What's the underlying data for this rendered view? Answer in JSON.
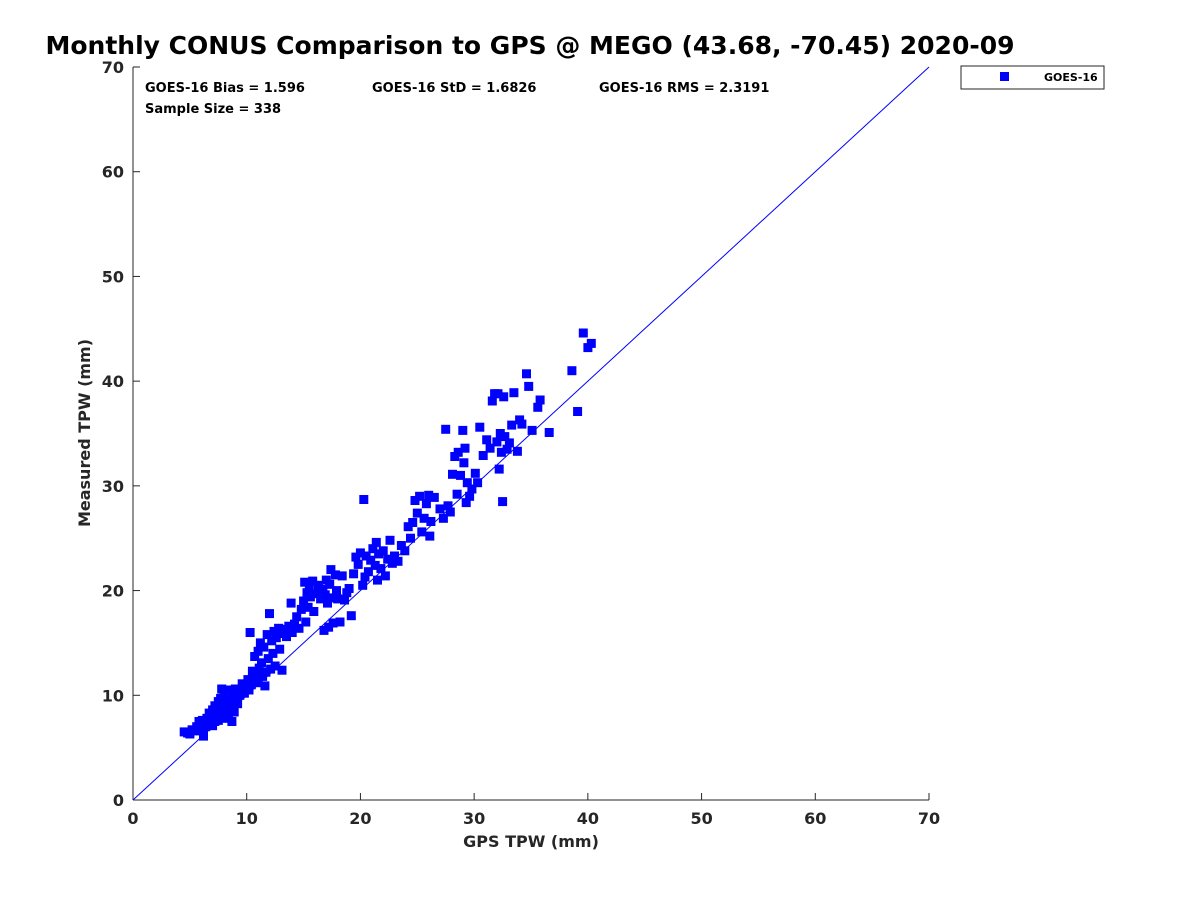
{
  "chart_data": {
    "type": "scatter",
    "title": "Monthly CONUS Comparison to GPS @ MEGO (43.68, -70.45) 2020-09",
    "xlabel": "GPS TPW (mm)",
    "ylabel": "Measured TPW (mm)",
    "xlim": [
      0,
      70
    ],
    "ylim": [
      0,
      70
    ],
    "xticks": [
      0,
      10,
      20,
      30,
      40,
      50,
      60,
      70
    ],
    "yticks": [
      0,
      10,
      20,
      30,
      40,
      50,
      60,
      70
    ],
    "grid": false,
    "legend_position": "outside-top-right",
    "reference_line": {
      "x": [
        0,
        70
      ],
      "y": [
        0,
        70
      ],
      "color": "#0000ff"
    },
    "stats": {
      "bias": "GOES-16 Bias = 1.596",
      "std": "GOES-16 StD = 1.6826",
      "rms": "GOES-16 RMS = 2.3191",
      "sample_size": "Sample Size = 338"
    },
    "series": [
      {
        "name": "GOES-16",
        "color": "#0000ff",
        "marker": "square",
        "points": [
          [
            4.5,
            6.5
          ],
          [
            4.8,
            6.4
          ],
          [
            5.0,
            6.3
          ],
          [
            5.2,
            6.7
          ],
          [
            5.5,
            6.6
          ],
          [
            5.6,
            7.0
          ],
          [
            5.8,
            7.5
          ],
          [
            5.9,
            6.8
          ],
          [
            6.0,
            7.2
          ],
          [
            6.1,
            7.6
          ],
          [
            6.2,
            6.9
          ],
          [
            6.2,
            6.1
          ],
          [
            6.3,
            7.4
          ],
          [
            6.4,
            7.0
          ],
          [
            6.5,
            7.8
          ],
          [
            6.6,
            7.3
          ],
          [
            6.7,
            8.3
          ],
          [
            6.8,
            7.2
          ],
          [
            6.9,
            7.9
          ],
          [
            7.0,
            8.6
          ],
          [
            7.0,
            7.1
          ],
          [
            7.1,
            8.0
          ],
          [
            7.2,
            9.0
          ],
          [
            7.2,
            7.5
          ],
          [
            7.3,
            8.2
          ],
          [
            7.4,
            8.8
          ],
          [
            7.5,
            9.4
          ],
          [
            7.5,
            7.6
          ],
          [
            7.6,
            8.4
          ],
          [
            7.7,
            9.7
          ],
          [
            7.8,
            8.1
          ],
          [
            7.8,
            10.6
          ],
          [
            7.9,
            9.0
          ],
          [
            8.0,
            7.8
          ],
          [
            8.0,
            10.0
          ],
          [
            8.1,
            8.6
          ],
          [
            8.2,
            9.3
          ],
          [
            8.3,
            10.5
          ],
          [
            8.4,
            8.0
          ],
          [
            8.5,
            9.6
          ],
          [
            8.6,
            8.9
          ],
          [
            8.7,
            7.5
          ],
          [
            8.8,
            9.9
          ],
          [
            8.9,
            8.4
          ],
          [
            9.0,
            10.6
          ],
          [
            9.2,
            9.2
          ],
          [
            9.4,
            10.0
          ],
          [
            9.5,
            10.4
          ],
          [
            9.6,
            11.1
          ],
          [
            9.8,
            10.2
          ],
          [
            10.0,
            10.9
          ],
          [
            10.1,
            11.5
          ],
          [
            10.2,
            10.5
          ],
          [
            10.3,
            16.0
          ],
          [
            10.4,
            11.0
          ],
          [
            10.5,
            12.3
          ],
          [
            10.6,
            11.4
          ],
          [
            10.7,
            13.7
          ],
          [
            10.8,
            12.0
          ],
          [
            10.9,
            11.2
          ],
          [
            11.0,
            14.2
          ],
          [
            11.1,
            12.6
          ],
          [
            11.2,
            15.0
          ],
          [
            11.3,
            13.1
          ],
          [
            11.4,
            11.8
          ],
          [
            11.5,
            14.6
          ],
          [
            11.6,
            10.9
          ],
          [
            11.7,
            12.2
          ],
          [
            11.8,
            15.8
          ],
          [
            11.9,
            13.5
          ],
          [
            12.0,
            17.8
          ],
          [
            12.1,
            12.5
          ],
          [
            12.2,
            15.2
          ],
          [
            12.3,
            14.0
          ],
          [
            12.4,
            16.1
          ],
          [
            12.5,
            12.8
          ],
          [
            12.6,
            15.5
          ],
          [
            12.8,
            16.4
          ],
          [
            12.9,
            14.4
          ],
          [
            13.0,
            15.9
          ],
          [
            13.1,
            12.4
          ],
          [
            13.3,
            16.3
          ],
          [
            13.5,
            15.6
          ],
          [
            13.7,
            16.6
          ],
          [
            13.9,
            18.8
          ],
          [
            14.0,
            16.0
          ],
          [
            14.2,
            16.8
          ],
          [
            14.4,
            17.5
          ],
          [
            14.6,
            16.4
          ],
          [
            14.8,
            18.2
          ],
          [
            15.0,
            19.0
          ],
          [
            15.1,
            20.8
          ],
          [
            15.2,
            17.0
          ],
          [
            15.3,
            19.8
          ],
          [
            15.4,
            18.4
          ],
          [
            15.5,
            20.3
          ],
          [
            15.6,
            19.4
          ],
          [
            15.8,
            20.9
          ],
          [
            15.9,
            18.0
          ],
          [
            16.1,
            19.7
          ],
          [
            16.3,
            20.5
          ],
          [
            16.5,
            19.2
          ],
          [
            16.7,
            20.1
          ],
          [
            16.8,
            16.2
          ],
          [
            16.9,
            19.6
          ],
          [
            17.0,
            21.0
          ],
          [
            17.1,
            18.8
          ],
          [
            17.2,
            16.5
          ],
          [
            17.3,
            20.6
          ],
          [
            17.4,
            22.0
          ],
          [
            17.5,
            19.3
          ],
          [
            17.6,
            16.9
          ],
          [
            17.8,
            21.5
          ],
          [
            17.9,
            20.0
          ],
          [
            18.0,
            19.2
          ],
          [
            18.2,
            17.0
          ],
          [
            18.4,
            21.4
          ],
          [
            18.6,
            19.1
          ],
          [
            18.8,
            19.8
          ],
          [
            19.0,
            20.2
          ],
          [
            19.2,
            17.6
          ],
          [
            19.4,
            21.6
          ],
          [
            19.6,
            23.2
          ],
          [
            19.8,
            22.5
          ],
          [
            20.0,
            23.6
          ],
          [
            20.2,
            20.5
          ],
          [
            20.3,
            28.7
          ],
          [
            20.4,
            21.3
          ],
          [
            20.5,
            23.3
          ],
          [
            20.7,
            21.8
          ],
          [
            20.9,
            22.9
          ],
          [
            21.1,
            24.0
          ],
          [
            21.3,
            22.4
          ],
          [
            21.4,
            24.6
          ],
          [
            21.5,
            21.0
          ],
          [
            21.6,
            23.5
          ],
          [
            21.8,
            22.1
          ],
          [
            22.0,
            23.8
          ],
          [
            22.2,
            21.4
          ],
          [
            22.4,
            23.0
          ],
          [
            22.6,
            24.8
          ],
          [
            22.8,
            22.6
          ],
          [
            23.0,
            23.3
          ],
          [
            23.3,
            22.8
          ],
          [
            23.6,
            24.3
          ],
          [
            23.9,
            23.8
          ],
          [
            24.2,
            26.1
          ],
          [
            24.4,
            25.0
          ],
          [
            24.6,
            26.5
          ],
          [
            24.8,
            28.6
          ],
          [
            25.0,
            27.4
          ],
          [
            25.2,
            29.0
          ],
          [
            25.4,
            25.6
          ],
          [
            25.6,
            26.9
          ],
          [
            25.8,
            28.3
          ],
          [
            26.0,
            29.1
          ],
          [
            26.1,
            25.2
          ],
          [
            26.2,
            26.6
          ],
          [
            26.5,
            28.9
          ],
          [
            27.0,
            27.8
          ],
          [
            27.3,
            26.9
          ],
          [
            27.5,
            35.4
          ],
          [
            27.7,
            28.1
          ],
          [
            27.9,
            27.5
          ],
          [
            28.1,
            31.1
          ],
          [
            28.3,
            32.8
          ],
          [
            28.5,
            29.2
          ],
          [
            28.6,
            33.2
          ],
          [
            28.8,
            31.0
          ],
          [
            29.0,
            35.3
          ],
          [
            29.1,
            32.2
          ],
          [
            29.2,
            33.6
          ],
          [
            29.3,
            28.4
          ],
          [
            29.4,
            30.3
          ],
          [
            29.6,
            29.0
          ],
          [
            29.8,
            29.7
          ],
          [
            30.1,
            31.2
          ],
          [
            30.3,
            30.3
          ],
          [
            30.5,
            35.6
          ],
          [
            30.8,
            32.9
          ],
          [
            31.1,
            34.4
          ],
          [
            31.4,
            33.6
          ],
          [
            31.6,
            38.1
          ],
          [
            31.8,
            38.8
          ],
          [
            32.0,
            34.2
          ],
          [
            32.1,
            38.8
          ],
          [
            32.2,
            31.6
          ],
          [
            32.3,
            35.0
          ],
          [
            32.4,
            33.2
          ],
          [
            32.5,
            28.5
          ],
          [
            32.6,
            38.5
          ],
          [
            32.7,
            34.7
          ],
          [
            32.9,
            33.5
          ],
          [
            33.1,
            34.1
          ],
          [
            33.3,
            35.8
          ],
          [
            33.5,
            38.9
          ],
          [
            33.8,
            33.3
          ],
          [
            34.0,
            36.3
          ],
          [
            34.2,
            35.9
          ],
          [
            34.6,
            40.7
          ],
          [
            34.8,
            39.5
          ],
          [
            35.1,
            35.3
          ],
          [
            35.6,
            37.5
          ],
          [
            35.8,
            38.2
          ],
          [
            36.6,
            35.1
          ],
          [
            38.6,
            41.0
          ],
          [
            39.1,
            37.1
          ],
          [
            39.6,
            44.6
          ],
          [
            40.0,
            43.2
          ],
          [
            40.3,
            43.6
          ]
        ]
      }
    ]
  }
}
